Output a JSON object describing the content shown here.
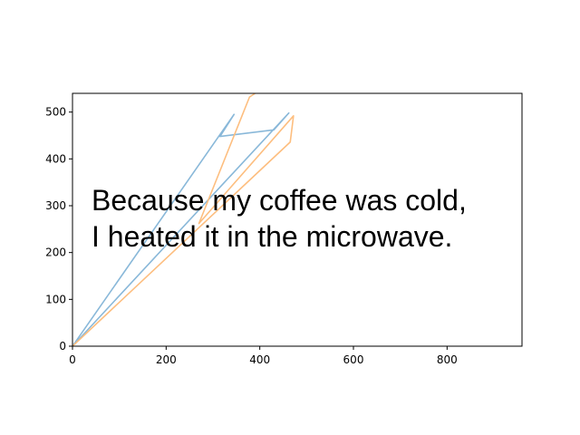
{
  "chart_data": {
    "type": "line",
    "title": "",
    "xlabel": "",
    "ylabel": "",
    "xlim": [
      0,
      960
    ],
    "ylim": [
      0,
      540
    ],
    "x_ticks": [
      0,
      200,
      400,
      600,
      800
    ],
    "y_ticks": [
      0,
      100,
      200,
      300,
      400,
      500
    ],
    "grid": false,
    "legend": "none",
    "series": [
      {
        "color": "#89b8d9",
        "points": [
          [
            0,
            0
          ],
          [
            345,
            495
          ],
          [
            315,
            448
          ],
          [
            430,
            462
          ],
          [
            462,
            498
          ],
          [
            0,
            0
          ]
        ]
      },
      {
        "color": "#fdbe7f",
        "points": [
          [
            0,
            0
          ],
          [
            465,
            436
          ],
          [
            472,
            492
          ],
          [
            270,
            262
          ],
          [
            378,
            532
          ],
          [
            390,
            540
          ]
        ]
      }
    ],
    "annotation": {
      "lines": [
        "Because my coffee was cold,",
        "I heated it in the microwave."
      ]
    }
  }
}
